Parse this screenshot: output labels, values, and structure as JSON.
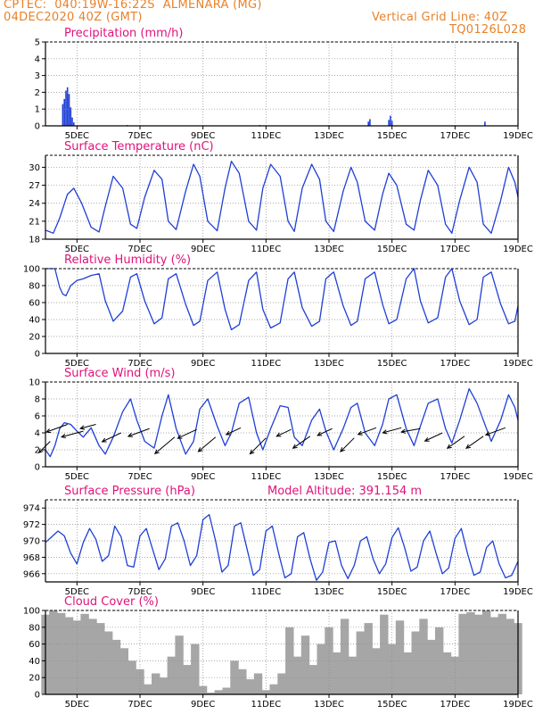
{
  "header": {
    "line1": "CPTEC:  040:19W-16:22S  ALMENARA (MG)",
    "line2": "04DEC2020 40Z (GMT)",
    "right1": "Vertical Grid Line: 40Z",
    "right2": "TQ0126L028"
  },
  "colors": {
    "header": "#e8822a",
    "title": "#e0127a",
    "line": "#1f3fd6",
    "bars": "#a6a6a6",
    "precip": "#1f3fd6",
    "grid": "#8c8c8c"
  },
  "x_axis_ticks": [
    "5DEC",
    "7DEC",
    "9DEC",
    "11DEC",
    "13DEC",
    "15DEC",
    "17DEC",
    "19DEC"
  ],
  "chart_data": [
    {
      "type": "bar",
      "title": "Precipitation (mm/h)",
      "ylim": [
        0,
        5
      ],
      "yticks": [
        "0",
        "1",
        "2",
        "3",
        "4",
        "5"
      ],
      "x": [
        4.55,
        4.6,
        4.65,
        4.7,
        4.75,
        4.8,
        4.85,
        4.9,
        6.6,
        10.8,
        14.25,
        14.3,
        14.9,
        14.95,
        15.0,
        17.95
      ],
      "values": [
        1.3,
        1.6,
        2.1,
        2.3,
        1.9,
        1.1,
        0.5,
        0.2,
        0.05,
        0.05,
        0.25,
        0.4,
        0.35,
        0.6,
        0.3,
        0.25
      ]
    },
    {
      "type": "line",
      "title": "Surface Temperature (nC)",
      "ylim": [
        18,
        32
      ],
      "yticks": [
        "18",
        "21",
        "24",
        "27",
        "30"
      ],
      "x": [
        4.0,
        4.25,
        4.45,
        4.7,
        4.9,
        5.15,
        5.45,
        5.7,
        5.9,
        6.15,
        6.45,
        6.7,
        6.9,
        7.15,
        7.45,
        7.7,
        7.9,
        8.15,
        8.45,
        8.7,
        8.9,
        9.15,
        9.45,
        9.7,
        9.9,
        10.15,
        10.45,
        10.7,
        10.9,
        11.15,
        11.45,
        11.7,
        11.9,
        12.15,
        12.45,
        12.7,
        12.9,
        13.15,
        13.45,
        13.7,
        13.9,
        14.15,
        14.45,
        14.7,
        14.9,
        15.15,
        15.45,
        15.7,
        15.9,
        16.15,
        16.45,
        16.7,
        16.9,
        17.15,
        17.45,
        17.7,
        17.9,
        18.15,
        18.45,
        18.7,
        18.9,
        19.0
      ],
      "values": [
        19.5,
        19.0,
        21.5,
        25.5,
        26.5,
        24.0,
        20.0,
        19.2,
        23.5,
        28.5,
        26.5,
        20.5,
        19.8,
        25.0,
        29.5,
        28.0,
        21.0,
        19.6,
        26.0,
        30.5,
        28.5,
        21.0,
        19.4,
        26.5,
        31.0,
        29.0,
        21.0,
        19.5,
        26.5,
        30.5,
        28.5,
        21.0,
        19.3,
        26.5,
        30.5,
        28.0,
        21.0,
        19.3,
        26.0,
        30.0,
        27.5,
        21.0,
        19.5,
        25.5,
        29.0,
        27.0,
        20.5,
        19.5,
        24.5,
        29.5,
        27.0,
        20.5,
        19.0,
        24.5,
        30.0,
        27.5,
        20.5,
        19.0,
        24.5,
        30.0,
        27.5,
        25.0
      ]
    },
    {
      "type": "line",
      "title": "Relative Humidity (%)",
      "ylim": [
        0,
        100
      ],
      "yticks": [
        "0",
        "20",
        "40",
        "60",
        "80",
        "100"
      ],
      "x": [
        4.0,
        4.3,
        4.45,
        4.55,
        4.65,
        4.8,
        5.0,
        5.2,
        5.45,
        5.7,
        5.9,
        6.15,
        6.45,
        6.7,
        6.9,
        7.15,
        7.45,
        7.7,
        7.9,
        8.15,
        8.45,
        8.7,
        8.9,
        9.15,
        9.45,
        9.7,
        9.9,
        10.15,
        10.45,
        10.7,
        10.9,
        11.15,
        11.45,
        11.7,
        11.9,
        12.15,
        12.45,
        12.7,
        12.9,
        13.15,
        13.45,
        13.7,
        13.9,
        14.15,
        14.45,
        14.7,
        14.9,
        15.15,
        15.45,
        15.7,
        15.9,
        16.15,
        16.45,
        16.7,
        16.9,
        17.15,
        17.45,
        17.7,
        17.9,
        18.15,
        18.45,
        18.7,
        18.9,
        19.0
      ],
      "values": [
        100,
        100,
        78,
        70,
        68,
        80,
        86,
        88,
        92,
        94,
        62,
        38,
        50,
        90,
        94,
        62,
        35,
        42,
        88,
        94,
        58,
        33,
        38,
        86,
        96,
        52,
        28,
        34,
        86,
        96,
        52,
        30,
        36,
        88,
        96,
        54,
        32,
        38,
        88,
        96,
        56,
        33,
        38,
        88,
        96,
        58,
        35,
        40,
        88,
        100,
        62,
        36,
        42,
        90,
        100,
        62,
        34,
        40,
        90,
        96,
        58,
        35,
        38,
        56
      ]
    },
    {
      "type": "line",
      "title": "Surface Wind (m/s)",
      "ylim": [
        0,
        10
      ],
      "yticks": [
        "0",
        "2",
        "4",
        "6",
        "8",
        "10"
      ],
      "x": [
        4.0,
        4.15,
        4.3,
        4.45,
        4.6,
        4.8,
        5.0,
        5.2,
        5.45,
        5.7,
        5.9,
        6.15,
        6.45,
        6.7,
        6.9,
        7.15,
        7.45,
        7.7,
        7.9,
        8.15,
        8.45,
        8.7,
        8.9,
        9.15,
        9.45,
        9.7,
        9.9,
        10.15,
        10.45,
        10.7,
        10.9,
        11.15,
        11.45,
        11.7,
        11.9,
        12.15,
        12.45,
        12.7,
        12.9,
        13.15,
        13.45,
        13.7,
        13.9,
        14.15,
        14.45,
        14.7,
        14.9,
        15.15,
        15.45,
        15.7,
        15.9,
        16.15,
        16.45,
        16.7,
        16.9,
        17.15,
        17.45,
        17.7,
        17.9,
        18.15,
        18.45,
        18.7,
        18.9,
        19.0
      ],
      "values": [
        2.0,
        1.2,
        2.5,
        4.5,
        5.2,
        5.0,
        4.2,
        3.5,
        4.6,
        2.5,
        1.5,
        3.5,
        6.5,
        8.0,
        5.5,
        3.0,
        2.2,
        6.0,
        8.5,
        4.5,
        1.5,
        3.0,
        6.8,
        8.0,
        4.8,
        2.5,
        4.0,
        7.5,
        8.2,
        4.0,
        2.0,
        4.5,
        7.2,
        7.0,
        3.5,
        2.5,
        5.5,
        6.8,
        4.2,
        2.0,
        4.5,
        7.0,
        7.5,
        4.0,
        2.5,
        5.0,
        8.0,
        8.5,
        4.5,
        2.5,
        4.8,
        7.5,
        8.0,
        4.5,
        2.8,
        5.5,
        9.2,
        7.5,
        5.5,
        3.0,
        5.5,
        8.5,
        7.0,
        5.5
      ],
      "arrows": [
        {
          "x": 4.15,
          "y": 3.0,
          "dir": 225,
          "len": 1.0
        },
        {
          "x": 4.7,
          "y": 5.0,
          "dir": 200,
          "len": 1.4
        },
        {
          "x": 5.2,
          "y": 4.2,
          "dir": 195,
          "len": 1.4
        },
        {
          "x": 5.6,
          "y": 5.0,
          "dir": 195,
          "len": 1.0
        },
        {
          "x": 6.4,
          "y": 4.0,
          "dir": 205,
          "len": 1.3
        },
        {
          "x": 7.3,
          "y": 4.5,
          "dir": 200,
          "len": 1.4
        },
        {
          "x": 8.1,
          "y": 3.5,
          "dir": 220,
          "len": 1.6
        },
        {
          "x": 8.8,
          "y": 4.4,
          "dir": 205,
          "len": 1.3
        },
        {
          "x": 9.4,
          "y": 3.5,
          "dir": 220,
          "len": 1.4
        },
        {
          "x": 10.2,
          "y": 4.6,
          "dir": 205,
          "len": 1.0
        },
        {
          "x": 11.0,
          "y": 3.4,
          "dir": 225,
          "len": 1.4
        },
        {
          "x": 11.8,
          "y": 4.4,
          "dir": 205,
          "len": 1.0
        },
        {
          "x": 12.4,
          "y": 3.6,
          "dir": 215,
          "len": 1.3
        },
        {
          "x": 13.1,
          "y": 4.5,
          "dir": 205,
          "len": 1.0
        },
        {
          "x": 13.8,
          "y": 3.4,
          "dir": 225,
          "len": 1.2
        },
        {
          "x": 14.5,
          "y": 4.6,
          "dir": 200,
          "len": 1.2
        },
        {
          "x": 15.3,
          "y": 4.6,
          "dir": 195,
          "len": 1.2
        },
        {
          "x": 15.9,
          "y": 4.5,
          "dir": 190,
          "len": 1.2
        },
        {
          "x": 16.6,
          "y": 4.0,
          "dir": 205,
          "len": 1.2
        },
        {
          "x": 17.3,
          "y": 3.6,
          "dir": 215,
          "len": 1.3
        },
        {
          "x": 17.9,
          "y": 3.6,
          "dir": 215,
          "len": 1.3
        },
        {
          "x": 18.6,
          "y": 4.6,
          "dir": 200,
          "len": 1.3
        }
      ]
    },
    {
      "type": "line",
      "title": "Surface Pressure (hPa)",
      "annotation": "Model Altitude: 391.154  m",
      "ylim": [
        965,
        975
      ],
      "yticks": [
        "966",
        "968",
        "970",
        "972",
        "974"
      ],
      "x": [
        4.0,
        4.2,
        4.4,
        4.6,
        4.8,
        5.0,
        5.2,
        5.4,
        5.6,
        5.8,
        6.0,
        6.2,
        6.4,
        6.6,
        6.8,
        7.0,
        7.2,
        7.4,
        7.6,
        7.8,
        8.0,
        8.2,
        8.4,
        8.6,
        8.8,
        9.0,
        9.2,
        9.4,
        9.6,
        9.8,
        10.0,
        10.2,
        10.4,
        10.6,
        10.8,
        11.0,
        11.2,
        11.4,
        11.6,
        11.8,
        12.0,
        12.2,
        12.4,
        12.6,
        12.8,
        13.0,
        13.2,
        13.4,
        13.6,
        13.8,
        14.0,
        14.2,
        14.4,
        14.6,
        14.8,
        15.0,
        15.2,
        15.4,
        15.6,
        15.8,
        16.0,
        16.2,
        16.4,
        16.6,
        16.8,
        17.0,
        17.2,
        17.4,
        17.6,
        17.8,
        18.0,
        18.2,
        18.4,
        18.6,
        18.8,
        19.0
      ],
      "values": [
        969.8,
        970.5,
        971.2,
        970.6,
        968.5,
        967.2,
        969.8,
        971.5,
        970.2,
        967.5,
        968.2,
        971.8,
        970.5,
        967.0,
        966.8,
        970.6,
        971.5,
        969.0,
        966.5,
        967.8,
        971.8,
        972.2,
        970.0,
        967.0,
        968.2,
        972.6,
        973.2,
        970.0,
        966.2,
        967.0,
        971.8,
        972.2,
        969.0,
        965.8,
        966.5,
        971.2,
        971.8,
        968.5,
        965.5,
        966.0,
        970.5,
        971.0,
        967.8,
        965.2,
        966.2,
        969.8,
        970.0,
        967.0,
        965.4,
        967.0,
        970.0,
        970.5,
        967.8,
        966.0,
        967.2,
        970.4,
        971.6,
        969.2,
        966.3,
        966.8,
        970.0,
        971.2,
        968.5,
        966.0,
        966.7,
        970.3,
        971.5,
        968.4,
        965.8,
        966.2,
        969.2,
        970.0,
        967.2,
        965.5,
        965.8,
        967.5
      ]
    },
    {
      "type": "bar",
      "title": "Cloud Cover (%)",
      "ylim": [
        0,
        100
      ],
      "yticks": [
        "0",
        "20",
        "40",
        "60",
        "80",
        "100"
      ],
      "x": [
        4.0,
        4.25,
        4.5,
        4.75,
        5.0,
        5.25,
        5.5,
        5.75,
        6.0,
        6.25,
        6.5,
        6.75,
        7.0,
        7.25,
        7.5,
        7.75,
        8.0,
        8.25,
        8.5,
        8.75,
        9.0,
        9.25,
        9.5,
        9.75,
        10.0,
        10.25,
        10.5,
        10.75,
        11.0,
        11.25,
        11.5,
        11.75,
        12.0,
        12.25,
        12.5,
        12.75,
        13.0,
        13.25,
        13.5,
        13.75,
        14.0,
        14.25,
        14.5,
        14.75,
        15.0,
        15.25,
        15.5,
        15.75,
        16.0,
        16.25,
        16.5,
        16.75,
        17.0,
        17.25,
        17.5,
        17.75,
        18.0,
        18.25,
        18.5,
        18.75,
        19.0
      ],
      "values": [
        95,
        100,
        97,
        92,
        88,
        96,
        90,
        85,
        75,
        65,
        55,
        40,
        30,
        12,
        25,
        20,
        45,
        70,
        35,
        60,
        10,
        2,
        5,
        8,
        40,
        30,
        18,
        25,
        5,
        12,
        25,
        80,
        45,
        70,
        35,
        60,
        80,
        50,
        90,
        45,
        75,
        85,
        55,
        95,
        60,
        88,
        50,
        75,
        90,
        65,
        80,
        50,
        45,
        96,
        98,
        95,
        100,
        92,
        96,
        90,
        85
      ]
    }
  ]
}
